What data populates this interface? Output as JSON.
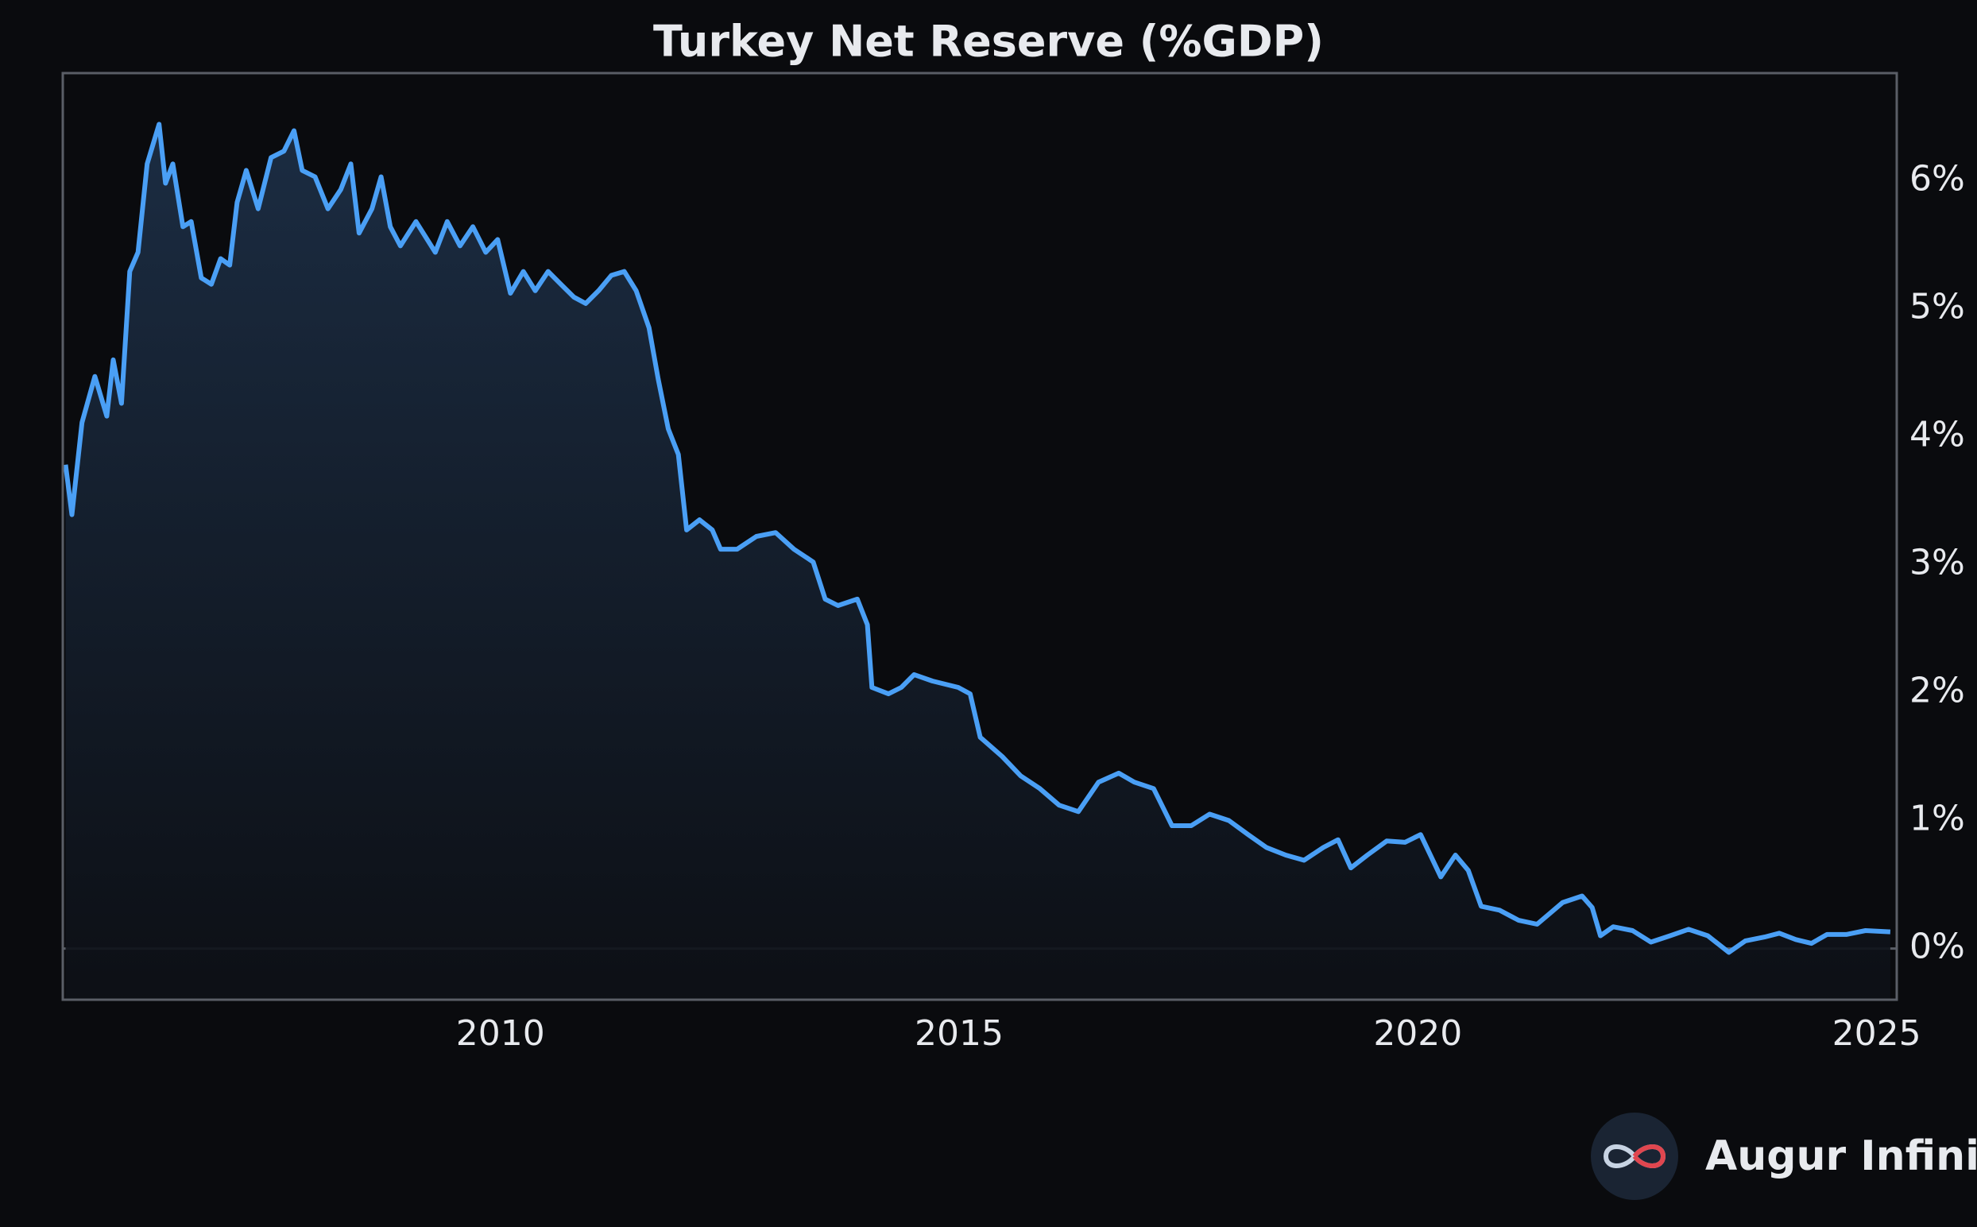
{
  "chart_data": {
    "type": "line",
    "title": "Turkey Net Reserve (%GDP)",
    "brand": "Augur Infinity",
    "color": "#4a9ff5",
    "y_axis_side": "right",
    "zero_line": true,
    "area_fill": true,
    "xlim": [
      2005.23,
      2025.22
    ],
    "xticks": [
      2010,
      2015,
      2020,
      2025
    ],
    "ylim": [
      -0.4,
      6.84
    ],
    "yticks": [
      {
        "value": 0,
        "label": "0%"
      },
      {
        "value": 1,
        "label": "1%"
      },
      {
        "value": 2,
        "label": "2%"
      },
      {
        "value": 3,
        "label": "3%"
      },
      {
        "value": 4,
        "label": "4%"
      },
      {
        "value": 5,
        "label": "5%"
      },
      {
        "value": 6,
        "label": "6%"
      }
    ],
    "x": [
      2005.26,
      2005.33,
      2005.44,
      2005.58,
      2005.71,
      2005.78,
      2005.87,
      2005.96,
      2006.05,
      2006.15,
      2006.28,
      2006.35,
      2006.43,
      2006.54,
      2006.63,
      2006.74,
      2006.85,
      2006.95,
      2007.05,
      2007.13,
      2007.23,
      2007.36,
      2007.5,
      2007.64,
      2007.75,
      2007.84,
      2007.98,
      2008.12,
      2008.26,
      2008.37,
      2008.46,
      2008.6,
      2008.7,
      2008.8,
      2008.91,
      2009.08,
      2009.29,
      2009.42,
      2009.56,
      2009.7,
      2009.84,
      2009.97,
      2010.11,
      2010.25,
      2010.38,
      2010.52,
      2010.66,
      2010.8,
      2010.93,
      2011.07,
      2011.21,
      2011.35,
      2011.48,
      2011.62,
      2011.72,
      2011.83,
      2011.94,
      2012.03,
      2012.17,
      2012.31,
      2012.4,
      2012.58,
      2012.79,
      2013.0,
      2013.2,
      2013.41,
      2013.54,
      2013.68,
      2013.89,
      2014.0,
      2014.05,
      2014.23,
      2014.37,
      2014.51,
      2014.71,
      2014.99,
      2015.12,
      2015.23,
      2015.47,
      2015.67,
      2015.88,
      2016.09,
      2016.3,
      2016.52,
      2016.74,
      2016.91,
      2017.12,
      2017.32,
      2017.53,
      2017.73,
      2017.94,
      2018.15,
      2018.35,
      2018.56,
      2018.76,
      2018.97,
      2019.13,
      2019.27,
      2019.45,
      2019.66,
      2019.86,
      2020.03,
      2020.25,
      2020.41,
      2020.55,
      2020.69,
      2020.89,
      2021.1,
      2021.3,
      2021.58,
      2021.79,
      2021.9,
      2021.99,
      2022.13,
      2022.34,
      2022.54,
      2022.75,
      2022.95,
      2023.16,
      2023.39,
      2023.57,
      2023.78,
      2023.94,
      2024.12,
      2024.29,
      2024.46,
      2024.67,
      2024.88,
      2025.15
    ],
    "values": [
      3.78,
      3.39,
      4.11,
      4.47,
      4.16,
      4.6,
      4.26,
      5.29,
      5.44,
      6.13,
      6.44,
      5.98,
      6.13,
      5.64,
      5.68,
      5.24,
      5.19,
      5.39,
      5.34,
      5.83,
      6.08,
      5.78,
      6.18,
      6.23,
      6.39,
      6.08,
      6.03,
      5.78,
      5.93,
      6.13,
      5.59,
      5.78,
      6.03,
      5.64,
      5.49,
      5.68,
      5.44,
      5.68,
      5.49,
      5.64,
      5.44,
      5.54,
      5.12,
      5.29,
      5.14,
      5.29,
      5.19,
      5.09,
      5.04,
      5.14,
      5.26,
      5.29,
      5.14,
      4.85,
      4.45,
      4.06,
      3.86,
      3.27,
      3.35,
      3.27,
      3.12,
      3.12,
      3.22,
      3.25,
      3.12,
      3.02,
      2.73,
      2.68,
      2.73,
      2.53,
      2.04,
      1.99,
      2.04,
      2.14,
      2.09,
      2.04,
      1.99,
      1.65,
      1.5,
      1.35,
      1.25,
      1.12,
      1.07,
      1.3,
      1.37,
      1.3,
      1.25,
      0.96,
      0.96,
      1.05,
      1.0,
      0.89,
      0.79,
      0.73,
      0.69,
      0.79,
      0.85,
      0.63,
      0.73,
      0.84,
      0.83,
      0.89,
      0.56,
      0.73,
      0.61,
      0.33,
      0.3,
      0.22,
      0.19,
      0.36,
      0.41,
      0.32,
      0.1,
      0.17,
      0.14,
      0.05,
      0.1,
      0.15,
      0.1,
      -0.03,
      0.06,
      0.09,
      0.12,
      0.07,
      0.04,
      0.11,
      0.11,
      0.14,
      0.13
    ]
  }
}
